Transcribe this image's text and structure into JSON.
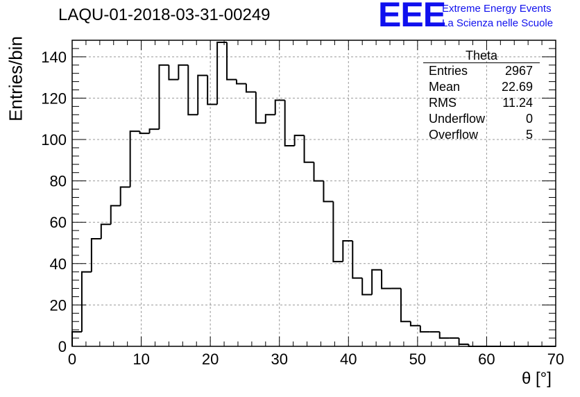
{
  "page_title": "LAQU-01-2018-03-31-00249",
  "logo": {
    "text": "EEE",
    "line1": "Extreme Energy Events",
    "line2": "La Scienza nelle Scuole",
    "color": "#1010ee"
  },
  "stats_box": {
    "title": "Theta",
    "rows": [
      {
        "label": "Entries",
        "value": "2967"
      },
      {
        "label": "Mean",
        "value": "22.69"
      },
      {
        "label": "RMS",
        "value": "11.24"
      },
      {
        "label": "Underflow",
        "value": "0"
      },
      {
        "label": "Overflow",
        "value": "5"
      }
    ]
  },
  "chart_data": {
    "type": "histogram",
    "title": "LAQU-01-2018-03-31-00249",
    "xlabel": "θ [°]",
    "ylabel": "Entries/bin",
    "xlim": [
      0,
      70
    ],
    "ylim": [
      0,
      148
    ],
    "bin_width": 1.4,
    "xticks": [
      0,
      10,
      20,
      30,
      40,
      50,
      60,
      70
    ],
    "yticks": [
      0,
      20,
      40,
      60,
      80,
      100,
      120,
      140
    ],
    "grid": true,
    "line_color": "#000000",
    "values": [
      7,
      36,
      52,
      59,
      68,
      77,
      104,
      103,
      105,
      136,
      129,
      136,
      112,
      131,
      117,
      147,
      129,
      127,
      123,
      108,
      112,
      119,
      97,
      102,
      89,
      80,
      70,
      41,
      51,
      33,
      25,
      37,
      28,
      28,
      12,
      10,
      7,
      7,
      4,
      4,
      1,
      0,
      0,
      0,
      0,
      0,
      0,
      0,
      0,
      0
    ]
  }
}
